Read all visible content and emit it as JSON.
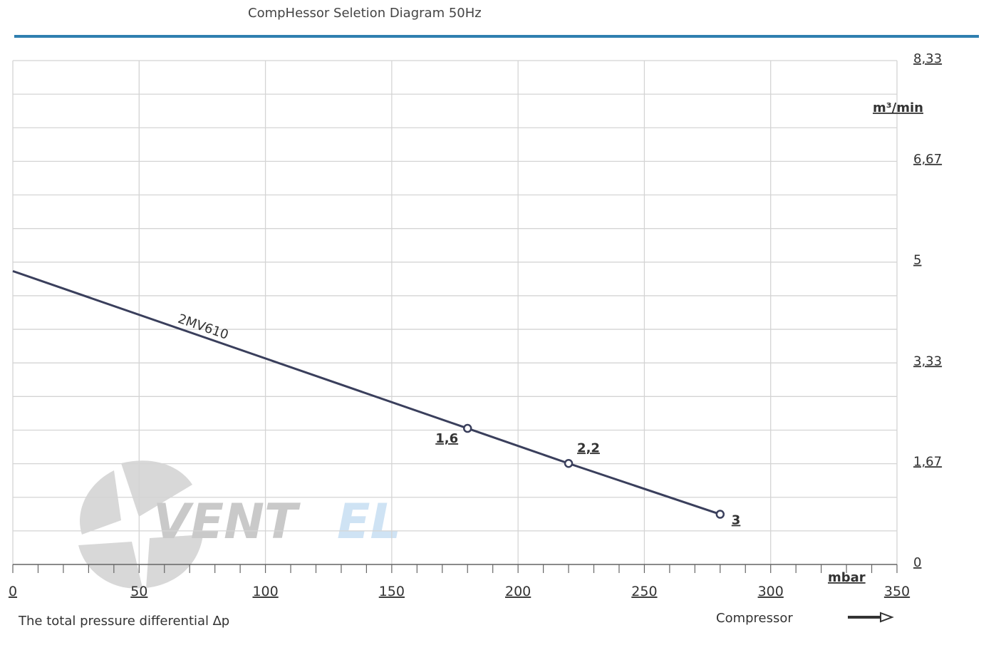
{
  "title": "CompHessor Seletion Diagram 50Hz",
  "x_description": "The total pressure differential ∆p",
  "compressor_label": "Compressor",
  "logo_text_left": "VENT",
  "logo_text_right": "EL",
  "colors": {
    "accent_bar": "#2f7fb0",
    "series": "#3a3f5c",
    "logo_grey": "#c9c9c9",
    "logo_blue": "#cfe3f4"
  },
  "chart_data": {
    "type": "line",
    "title": "CompHessor Seletion Diagram 50Hz",
    "xlabel": "mbar",
    "ylabel": "m³/min",
    "xlim": [
      0,
      350
    ],
    "ylim": [
      0,
      8.33
    ],
    "x_ticks": [
      0,
      50,
      100,
      150,
      200,
      250,
      300,
      350
    ],
    "x_tick_labels": [
      "0",
      "50",
      "100",
      "150",
      "200",
      "250",
      "300",
      "350"
    ],
    "y_ticks": [
      0,
      1.67,
      3.33,
      5,
      6.67,
      8.33
    ],
    "y_tick_labels": [
      "0",
      "1,67",
      "3,33",
      "5",
      "6,67",
      "8,33"
    ],
    "grid": true,
    "series": [
      {
        "name": "2MV610",
        "x": [
          0,
          180,
          220,
          280
        ],
        "y": [
          4.85,
          2.25,
          1.67,
          0.83
        ],
        "point_labels": [
          "",
          "1,6",
          "2,2",
          "3"
        ]
      }
    ]
  }
}
